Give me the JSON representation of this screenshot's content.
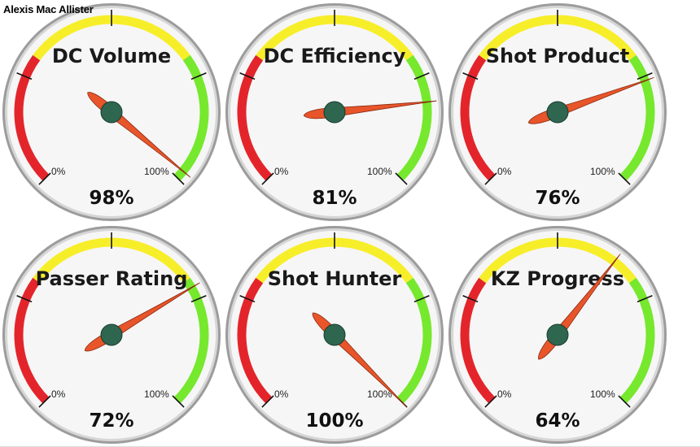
{
  "player": "Alexis Mac Allister",
  "colors": {
    "red": "#e3252b",
    "yellow": "#f7ee2a",
    "green": "#76e82d",
    "needle": "#e8552a",
    "hub": "#2e6650",
    "face": "#f6f6f6",
    "rim": "#9c9c9c"
  },
  "chart_data": [
    {
      "type": "gauge",
      "title": "DC Volume",
      "value": 98,
      "value_label": "98%",
      "min_label": "0%",
      "max_label": "100%"
    },
    {
      "type": "gauge",
      "title": "DC Efficiency",
      "value": 81,
      "value_label": "81%",
      "min_label": "0%",
      "max_label": "100%"
    },
    {
      "type": "gauge",
      "title": "Shot Product",
      "value": 76,
      "value_label": "76%",
      "min_label": "0%",
      "max_label": "100%"
    },
    {
      "type": "gauge",
      "title": "Passer Rating",
      "value": 72,
      "value_label": "72%",
      "min_label": "0%",
      "max_label": "100%"
    },
    {
      "type": "gauge",
      "title": "Shot Hunter",
      "value": 100,
      "value_label": "100%",
      "min_label": "0%",
      "max_label": "100%"
    },
    {
      "type": "gauge",
      "title": "KZ Progress",
      "value": 64,
      "value_label": "64%",
      "min_label": "0%",
      "max_label": "100%"
    }
  ]
}
